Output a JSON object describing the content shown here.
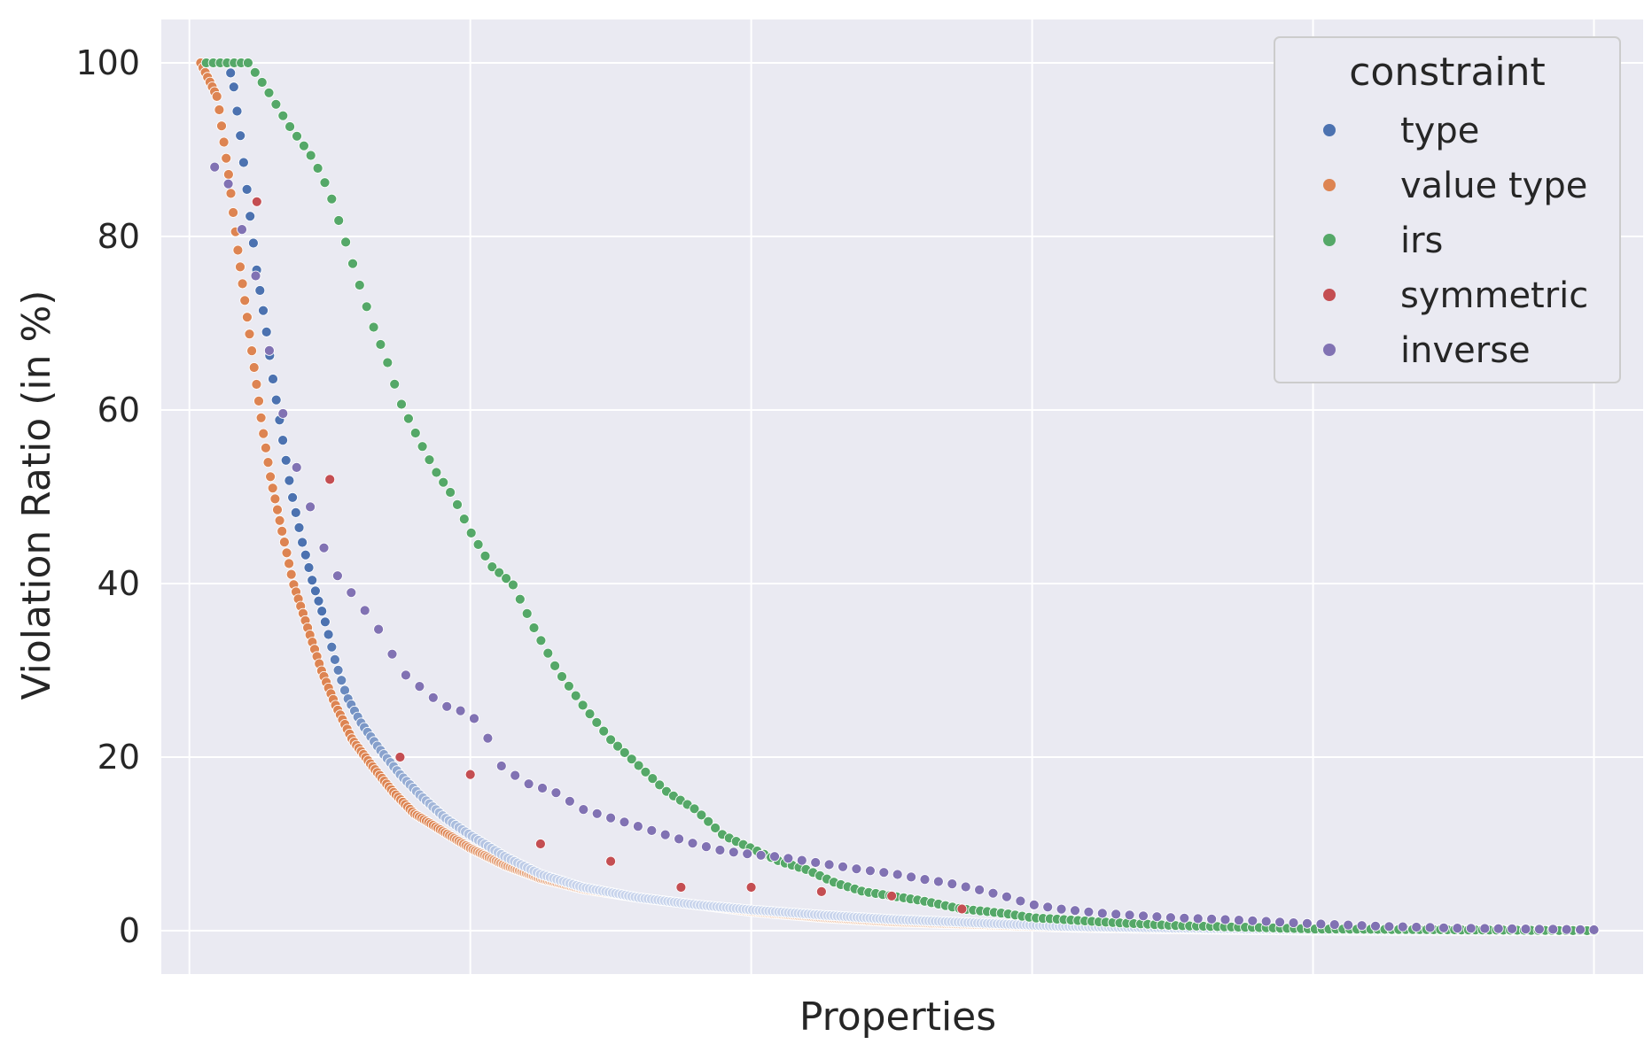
{
  "chart_data": {
    "type": "scatter",
    "xlabel": "Properties",
    "ylabel": "Violation Ratio (in %)",
    "ylim": [
      -5,
      105
    ],
    "xlim": [
      -20,
      1035
    ],
    "x_tick_labels_shown": false,
    "y_ticks": [
      {
        "value": 0,
        "label": "0"
      },
      {
        "value": 20,
        "label": "20"
      },
      {
        "value": 40,
        "label": "40"
      },
      {
        "value": 60,
        "label": "60"
      },
      {
        "value": 80,
        "label": "80"
      },
      {
        "value": 100,
        "label": "100"
      }
    ],
    "x_gridlines": [
      0,
      200,
      400,
      600,
      800,
      1000
    ],
    "grid": true,
    "background": "#eaeaf2",
    "legend": {
      "title": "constraint",
      "placement": "top-right"
    },
    "series": [
      {
        "name": "type",
        "color": "#4c72b0",
        "anchors": [
          [
            27,
            100
          ],
          [
            31,
            98
          ],
          [
            36,
            92
          ],
          [
            42,
            84
          ],
          [
            48,
            76
          ],
          [
            54,
            70
          ],
          [
            60,
            63
          ],
          [
            66,
            57
          ],
          [
            72,
            51
          ],
          [
            80,
            45
          ],
          [
            88,
            40
          ],
          [
            96,
            36
          ],
          [
            104,
            31
          ],
          [
            112,
            27
          ],
          [
            122,
            24
          ],
          [
            135,
            21
          ],
          [
            150,
            18
          ],
          [
            165,
            15.5
          ],
          [
            182,
            13
          ],
          [
            200,
            11
          ],
          [
            225,
            8.5
          ],
          [
            250,
            6.5
          ],
          [
            280,
            5
          ],
          [
            320,
            3.8
          ],
          [
            360,
            3
          ],
          [
            400,
            2.4
          ],
          [
            450,
            1.8
          ],
          [
            500,
            1.3
          ],
          [
            560,
            0.9
          ],
          [
            620,
            0.5
          ],
          [
            700,
            0.3
          ],
          [
            800,
            0.1
          ],
          [
            1000,
            0
          ]
        ],
        "count": 420
      },
      {
        "name": "value type",
        "color": "#dd8452",
        "anchors": [
          [
            8,
            100
          ],
          [
            20,
            96
          ],
          [
            28,
            87
          ],
          [
            34,
            79
          ],
          [
            40,
            72
          ],
          [
            46,
            65
          ],
          [
            52,
            58
          ],
          [
            58,
            52
          ],
          [
            66,
            46
          ],
          [
            74,
            40
          ],
          [
            84,
            35
          ],
          [
            94,
            30
          ],
          [
            104,
            26
          ],
          [
            116,
            22
          ],
          [
            130,
            19
          ],
          [
            145,
            16
          ],
          [
            160,
            13.5
          ],
          [
            180,
            11.5
          ],
          [
            200,
            9.5
          ],
          [
            225,
            7.5
          ],
          [
            250,
            6
          ],
          [
            280,
            4.8
          ],
          [
            320,
            3.8
          ],
          [
            360,
            3
          ],
          [
            400,
            2.2
          ],
          [
            450,
            1.5
          ],
          [
            500,
            1
          ],
          [
            560,
            0.7
          ],
          [
            620,
            0.4
          ],
          [
            700,
            0.2
          ],
          [
            800,
            0.05
          ],
          [
            1000,
            0
          ]
        ],
        "count": 600
      },
      {
        "name": "irs",
        "color": "#55a868",
        "anchors": [
          [
            12,
            100
          ],
          [
            42,
            100
          ],
          [
            55,
            97
          ],
          [
            70,
            93
          ],
          [
            88,
            89
          ],
          [
            100,
            85
          ],
          [
            110,
            80
          ],
          [
            120,
            75
          ],
          [
            130,
            70
          ],
          [
            140,
            66
          ],
          [
            150,
            61
          ],
          [
            162,
            57
          ],
          [
            175,
            53
          ],
          [
            188,
            50
          ],
          [
            200,
            46
          ],
          [
            215,
            42
          ],
          [
            230,
            40
          ],
          [
            245,
            35
          ],
          [
            262,
            30
          ],
          [
            280,
            26
          ],
          [
            300,
            22
          ],
          [
            320,
            19
          ],
          [
            340,
            16
          ],
          [
            360,
            14
          ],
          [
            380,
            11
          ],
          [
            400,
            9.5
          ],
          [
            420,
            8
          ],
          [
            440,
            7
          ],
          [
            460,
            5.5
          ],
          [
            480,
            4.5
          ],
          [
            500,
            4
          ],
          [
            520,
            3.5
          ],
          [
            550,
            2.5
          ],
          [
            580,
            2
          ],
          [
            600,
            1.5
          ],
          [
            650,
            1
          ],
          [
            700,
            0.6
          ],
          [
            750,
            0.4
          ],
          [
            800,
            0.2
          ],
          [
            1000,
            0
          ]
        ],
        "count": 200
      },
      {
        "name": "symmetric",
        "color": "#c44e52",
        "points": [
          [
            48,
            84
          ],
          [
            100,
            52
          ],
          [
            150,
            20
          ],
          [
            200,
            18
          ],
          [
            250,
            10
          ],
          [
            300,
            8
          ],
          [
            350,
            5
          ],
          [
            400,
            5
          ],
          [
            450,
            4.5
          ],
          [
            500,
            4
          ],
          [
            550,
            2.5
          ]
        ]
      },
      {
        "name": "inverse",
        "color": "#8172b3",
        "anchors": [
          [
            18,
            88
          ],
          [
            28,
            86
          ],
          [
            48,
            75
          ],
          [
            60,
            64
          ],
          [
            75,
            54
          ],
          [
            90,
            47
          ],
          [
            100,
            42
          ],
          [
            120,
            38
          ],
          [
            138,
            34
          ],
          [
            150,
            30
          ],
          [
            165,
            28
          ],
          [
            180,
            26
          ],
          [
            200,
            25
          ],
          [
            210,
            23
          ],
          [
            222,
            19
          ],
          [
            240,
            17
          ],
          [
            260,
            16
          ],
          [
            280,
            14
          ],
          [
            300,
            13
          ],
          [
            320,
            12
          ],
          [
            340,
            11
          ],
          [
            360,
            10
          ],
          [
            380,
            9.2
          ],
          [
            400,
            8.8
          ],
          [
            420,
            8.5
          ],
          [
            440,
            8
          ],
          [
            460,
            7.5
          ],
          [
            480,
            7
          ],
          [
            500,
            6.6
          ],
          [
            520,
            6
          ],
          [
            540,
            5.5
          ],
          [
            560,
            4.8
          ],
          [
            580,
            4
          ],
          [
            600,
            3
          ],
          [
            620,
            2.5
          ],
          [
            650,
            2
          ],
          [
            700,
            1.5
          ],
          [
            750,
            1.2
          ],
          [
            800,
            0.8
          ],
          [
            850,
            0.5
          ],
          [
            900,
            0.3
          ],
          [
            1000,
            0.1
          ]
        ],
        "count": 102
      }
    ]
  }
}
